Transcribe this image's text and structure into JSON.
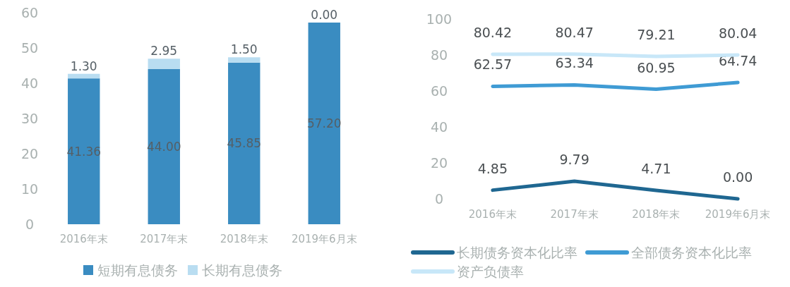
{
  "chart_data": [
    {
      "type": "bar",
      "stacked": true,
      "categories": [
        "2016年末",
        "2017年末",
        "2018年末",
        "2019年6月末"
      ],
      "ylim": [
        0,
        60
      ],
      "yticks": [
        0,
        10,
        20,
        30,
        40,
        50,
        60
      ],
      "grid": false,
      "legend": "bottom",
      "series": [
        {
          "name": "短期有息债务",
          "color": "#3a8cc1",
          "values": [
            41.36,
            44.0,
            45.85,
            57.2
          ],
          "value_labels": [
            "41.36",
            "44.00",
            "45.85",
            "57.20"
          ]
        },
        {
          "name": "长期有息债务",
          "color": "#b9ddf1",
          "values": [
            1.3,
            2.95,
            1.5,
            0.0
          ],
          "value_labels": [
            "1.30",
            "2.95",
            "1.50",
            "0.00"
          ]
        }
      ]
    },
    {
      "type": "line",
      "categories": [
        "2016年末",
        "2017年末",
        "2018年末",
        "2019年6月末"
      ],
      "ylim": [
        0,
        100
      ],
      "yticks": [
        0,
        20,
        40,
        60,
        80,
        100
      ],
      "grid": false,
      "legend": "bottom",
      "marker": "none",
      "line_style": "solid",
      "series": [
        {
          "name": "长期债务资本化比率",
          "color": "#1f6791",
          "values": [
            4.85,
            9.79,
            4.71,
            0.0
          ],
          "value_labels": [
            "4.85",
            "9.79",
            "4.71",
            "0.00"
          ]
        },
        {
          "name": "全部债务资本化比率",
          "color": "#3f9bd4",
          "values": [
            62.57,
            63.34,
            60.95,
            64.74
          ],
          "value_labels": [
            "62.57",
            "63.34",
            "60.95",
            "64.74"
          ]
        },
        {
          "name": "资产负债率",
          "color": "#c8e7f8",
          "values": [
            80.42,
            80.47,
            79.21,
            80.04
          ],
          "value_labels": [
            "80.42",
            "80.47",
            "79.21",
            "80.04"
          ]
        }
      ]
    }
  ]
}
